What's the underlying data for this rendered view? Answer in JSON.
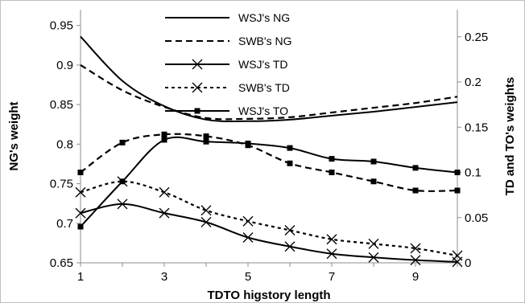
{
  "chart_data": {
    "type": "line",
    "x": [
      1,
      2,
      3,
      4,
      5,
      6,
      7,
      8,
      9,
      10
    ],
    "x_ticks": [
      "1",
      "3",
      "5",
      "7",
      "9"
    ],
    "x_tick_values": [
      1,
      3,
      5,
      7,
      9
    ],
    "xlim": [
      1,
      10
    ],
    "xlabel": "TDTO higstory length",
    "left_axis": {
      "label": "NG's weight",
      "ylim": [
        0.65,
        0.97
      ],
      "ticks": [
        "0.65",
        "0.7",
        "0.75",
        "0.8",
        "0.85",
        "0.9",
        "0.95"
      ],
      "tick_values": [
        0.65,
        0.7,
        0.75,
        0.8,
        0.85,
        0.9,
        0.95
      ]
    },
    "right_axis": {
      "label": "TD and TO's weights",
      "ylim": [
        0,
        0.28
      ],
      "ticks": [
        "0",
        "0.05",
        "0.1",
        "0.15",
        "0.2",
        "0.25"
      ],
      "tick_values": [
        0,
        0.05,
        0.1,
        0.15,
        0.2,
        0.25
      ]
    },
    "series": [
      {
        "name": "WSJ's NG",
        "axis": "left",
        "style": "solid",
        "marker": "none",
        "values": [
          0.936,
          0.88,
          0.848,
          0.831,
          0.829,
          0.831,
          0.836,
          0.841,
          0.847,
          0.853
        ]
      },
      {
        "name": "SWB's NG",
        "axis": "left",
        "style": "dashed",
        "marker": "none",
        "values": [
          0.9,
          0.868,
          0.847,
          0.833,
          0.832,
          0.834,
          0.84,
          0.846,
          0.852,
          0.86
        ]
      },
      {
        "name": "WSJ's TD",
        "axis": "right",
        "style": "solid",
        "marker": "x",
        "values": [
          0.055,
          0.065,
          0.055,
          0.045,
          0.028,
          0.018,
          0.01,
          0.006,
          0.003,
          0.001
        ]
      },
      {
        "name": "SWB's TD",
        "axis": "right",
        "style": "dashed",
        "marker": "x",
        "values": [
          0.078,
          0.09,
          0.078,
          0.058,
          0.046,
          0.036,
          0.026,
          0.021,
          0.016,
          0.008
        ]
      },
      {
        "name": "WSJ's TO",
        "axis": "right",
        "style": "solid",
        "marker": "square",
        "values": [
          0.04,
          0.09,
          0.136,
          0.134,
          0.132,
          0.127,
          0.115,
          0.112,
          0.105,
          0.1
        ]
      },
      {
        "name": "",
        "axis": "right",
        "style": "dashed",
        "marker": "square",
        "values": [
          0.1,
          0.133,
          0.142,
          0.14,
          0.13,
          0.11,
          0.1,
          0.09,
          0.08,
          0.08
        ]
      }
    ],
    "legend": {
      "placement": "top-center",
      "entries": [
        "WSJ's NG",
        "SWB's NG",
        "WSJ's TD",
        "SWB's TD",
        "WSJ's TO"
      ]
    },
    "grid": false
  }
}
